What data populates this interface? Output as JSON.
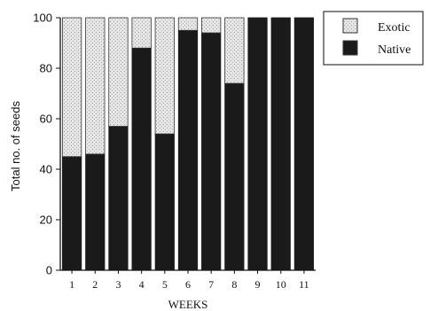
{
  "chart_data": {
    "type": "bar",
    "stacked": true,
    "categories": [
      "1",
      "2",
      "3",
      "4",
      "5",
      "6",
      "7",
      "8",
      "9",
      "10",
      "11"
    ],
    "series": [
      {
        "name": "Native",
        "values": [
          45,
          46,
          57,
          88,
          54,
          95,
          94,
          74,
          100,
          100,
          100
        ],
        "color": "#1a1a1a"
      },
      {
        "name": "Exotic",
        "values": [
          55,
          54,
          43,
          12,
          46,
          5,
          6,
          26,
          0,
          0,
          0
        ],
        "color": "#d9d9d9"
      }
    ],
    "xlabel": "WEEKS",
    "ylabel": "Total no. of seeds",
    "ylim": [
      0,
      100
    ],
    "yticks": [
      "0",
      "20",
      "40",
      "60",
      "80",
      "100"
    ],
    "legend": [
      "Exotic",
      "Native"
    ],
    "legend_position": "top-right",
    "grid": false
  }
}
